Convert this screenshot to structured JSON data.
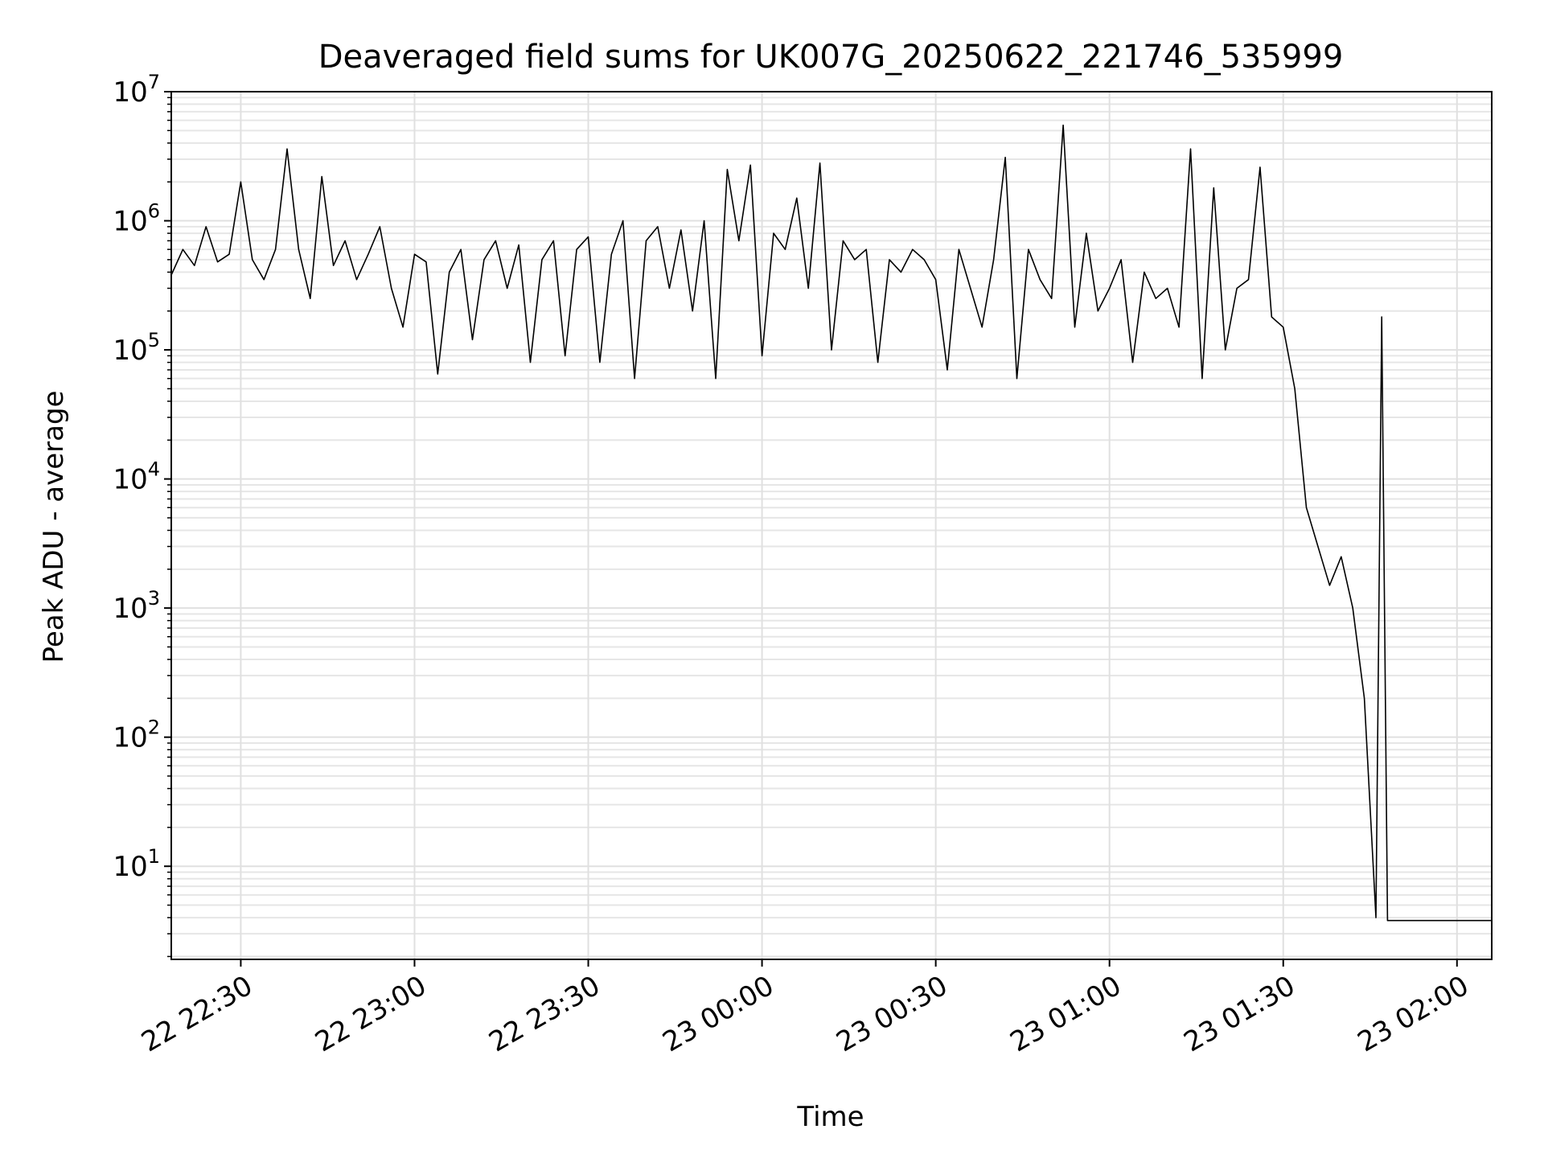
{
  "chart_data": {
    "type": "line",
    "title": "Deaveraged field sums for UK007G_20250622_221746_535999",
    "xlabel": "Time",
    "ylabel": "Peak ADU - average",
    "xscale": "time",
    "yscale": "log",
    "xlim": [
      "22 22:18",
      "23 02:06"
    ],
    "ylim": [
      1.9,
      10000000
    ],
    "grid": true,
    "x_ticks": [
      "22 22:30",
      "22 23:00",
      "22 23:30",
      "23 00:00",
      "23 00:30",
      "23 01:00",
      "23 01:30",
      "23 02:00"
    ],
    "y_ticks": [
      {
        "base": "10",
        "exp": "1",
        "value": 10
      },
      {
        "base": "10",
        "exp": "2",
        "value": 100
      },
      {
        "base": "10",
        "exp": "3",
        "value": 1000
      },
      {
        "base": "10",
        "exp": "4",
        "value": 10000
      },
      {
        "base": "10",
        "exp": "5",
        "value": 100000
      },
      {
        "base": "10",
        "exp": "6",
        "value": 1000000
      },
      {
        "base": "10",
        "exp": "7",
        "value": 10000000
      }
    ],
    "series": [
      {
        "color": "#000000",
        "x": [
          "22 22:18",
          "22 22:20",
          "22 22:22",
          "22 22:24",
          "22 22:26",
          "22 22:28",
          "22 22:30",
          "22 22:32",
          "22 22:34",
          "22 22:36",
          "22 22:38",
          "22 22:40",
          "22 22:42",
          "22 22:44",
          "22 22:46",
          "22 22:48",
          "22 22:50",
          "22 22:52",
          "22 22:54",
          "22 22:56",
          "22 22:58",
          "22 23:00",
          "22 23:02",
          "22 23:04",
          "22 23:06",
          "22 23:08",
          "22 23:10",
          "22 23:12",
          "22 23:14",
          "22 23:16",
          "22 23:18",
          "22 23:20",
          "22 23:22",
          "22 23:24",
          "22 23:26",
          "22 23:28",
          "22 23:30",
          "22 23:32",
          "22 23:34",
          "22 23:36",
          "22 23:38",
          "22 23:40",
          "22 23:42",
          "22 23:44",
          "22 23:46",
          "22 23:48",
          "22 23:50",
          "22 23:52",
          "22 23:54",
          "22 23:56",
          "22 23:58",
          "23 00:00",
          "23 00:02",
          "23 00:04",
          "23 00:06",
          "23 00:08",
          "23 00:10",
          "23 00:12",
          "23 00:14",
          "23 00:16",
          "23 00:18",
          "23 00:20",
          "23 00:22",
          "23 00:24",
          "23 00:26",
          "23 00:28",
          "23 00:30",
          "23 00:32",
          "23 00:34",
          "23 00:36",
          "23 00:38",
          "23 00:40",
          "23 00:42",
          "23 00:44",
          "23 00:46",
          "23 00:48",
          "23 00:50",
          "23 00:52",
          "23 00:54",
          "23 00:56",
          "23 00:58",
          "23 01:00",
          "23 01:02",
          "23 01:04",
          "23 01:06",
          "23 01:08",
          "23 01:10",
          "23 01:12",
          "23 01:14",
          "23 01:16",
          "23 01:18",
          "23 01:20",
          "23 01:22",
          "23 01:24",
          "23 01:26",
          "23 01:28",
          "23 01:30",
          "23 01:32",
          "23 01:34",
          "23 01:36",
          "23 01:38",
          "23 01:40",
          "23 01:42",
          "23 01:44",
          "23 01:46",
          "23 01:47",
          "23 01:48",
          "23 01:49",
          "23 01:50",
          "23 01:51",
          "23 01:52",
          "23 01:54",
          "23 01:56",
          "23 01:58",
          "23 02:00",
          "23 02:02",
          "23 02:04",
          "23 02:06"
        ],
        "y": [
          380000,
          600000,
          450000,
          900000,
          480000,
          550000,
          2000000,
          500000,
          350000,
          600000,
          3600000,
          600000,
          250000,
          2200000,
          450000,
          700000,
          350000,
          550000,
          900000,
          300000,
          150000,
          550000,
          480000,
          65000,
          400000,
          600000,
          120000,
          500000,
          700000,
          300000,
          650000,
          80000,
          500000,
          700000,
          90000,
          600000,
          750000,
          80000,
          550000,
          1000000,
          60000,
          700000,
          900000,
          300000,
          850000,
          200000,
          1000000,
          60000,
          2500000,
          700000,
          2700000,
          90000,
          800000,
          600000,
          1500000,
          300000,
          2800000,
          100000,
          700000,
          500000,
          600000,
          80000,
          500000,
          400000,
          600000,
          500000,
          350000,
          70000,
          600000,
          300000,
          150000,
          500000,
          3100000,
          60000,
          600000,
          350000,
          250000,
          5500000,
          150000,
          800000,
          200000,
          300000,
          500000,
          80000,
          400000,
          250000,
          300000,
          150000,
          3600000,
          60000,
          1800000,
          100000,
          300000,
          350000,
          2600000,
          180000,
          150000,
          50000,
          6000,
          3000,
          1500,
          2500,
          1000,
          200,
          4,
          180000,
          3.8,
          3.8,
          3.8,
          3.8,
          3.8,
          3.8,
          3.8,
          3.8,
          3.8,
          3.8,
          3.8,
          3.8
        ]
      }
    ]
  }
}
